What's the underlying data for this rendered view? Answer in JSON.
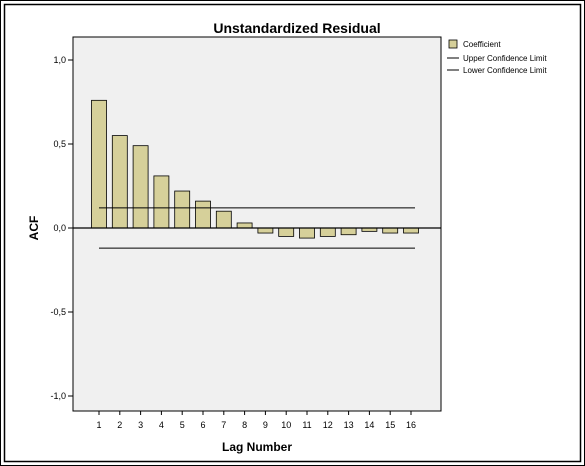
{
  "chart_data": {
    "type": "bar",
    "title": "Unstandardized Residual",
    "xlabel": "Lag Number",
    "ylabel": "ACF",
    "categories": [
      "1",
      "2",
      "3",
      "4",
      "5",
      "6",
      "7",
      "8",
      "9",
      "10",
      "11",
      "12",
      "13",
      "14",
      "15",
      "16"
    ],
    "series": [
      {
        "name": "Coefficient",
        "values": [
          0.76,
          0.55,
          0.49,
          0.31,
          0.22,
          0.16,
          0.1,
          0.03,
          -0.03,
          -0.05,
          -0.06,
          -0.05,
          -0.04,
          -0.02,
          -0.03,
          -0.03
        ]
      }
    ],
    "upper_confidence_limit": 0.12,
    "lower_confidence_limit": -0.12,
    "ylim": [
      -1.1,
      1.1
    ],
    "yticks": [
      -1.0,
      -0.5,
      0.0,
      0.5,
      1.0
    ],
    "ytick_labels": [
      "-1,0",
      "-0,5",
      "0,0",
      "0,5",
      "1,0"
    ],
    "grid": false,
    "legend_position": "top-right",
    "legend": [
      "Coefficient",
      "Upper Confidence Limit",
      "Lower Confidence Limit"
    ],
    "colors": {
      "bar_fill": "#d6d09a",
      "bar_stroke": "#000000",
      "plot_background": "#f0f0f0",
      "line": "#000000"
    }
  }
}
